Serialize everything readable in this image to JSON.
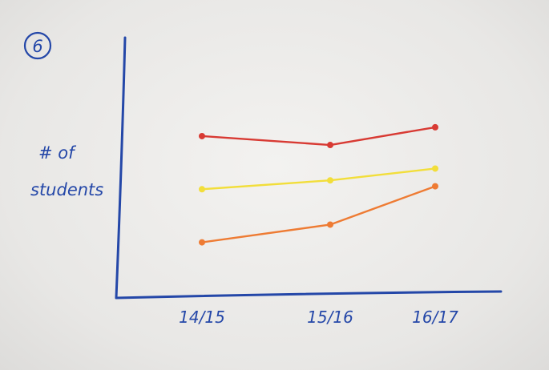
{
  "badge": "6",
  "chart_data": {
    "type": "line",
    "ylabel_lines": [
      "# of",
      "students"
    ],
    "xlabel": "",
    "categories": [
      "14/15",
      "15/16",
      "16/17"
    ],
    "series": [
      {
        "color": "#d83a33",
        "values": [
          8.2,
          7.9,
          8.5
        ]
      },
      {
        "color": "#f2de3a",
        "values": [
          6.4,
          6.7,
          7.1
        ]
      },
      {
        "color": "#ee7b33",
        "values": [
          4.6,
          5.2,
          6.5
        ]
      }
    ],
    "ylim": [
      0,
      12
    ],
    "grid": false,
    "legend": "none",
    "axis_color": "#2447a8"
  }
}
